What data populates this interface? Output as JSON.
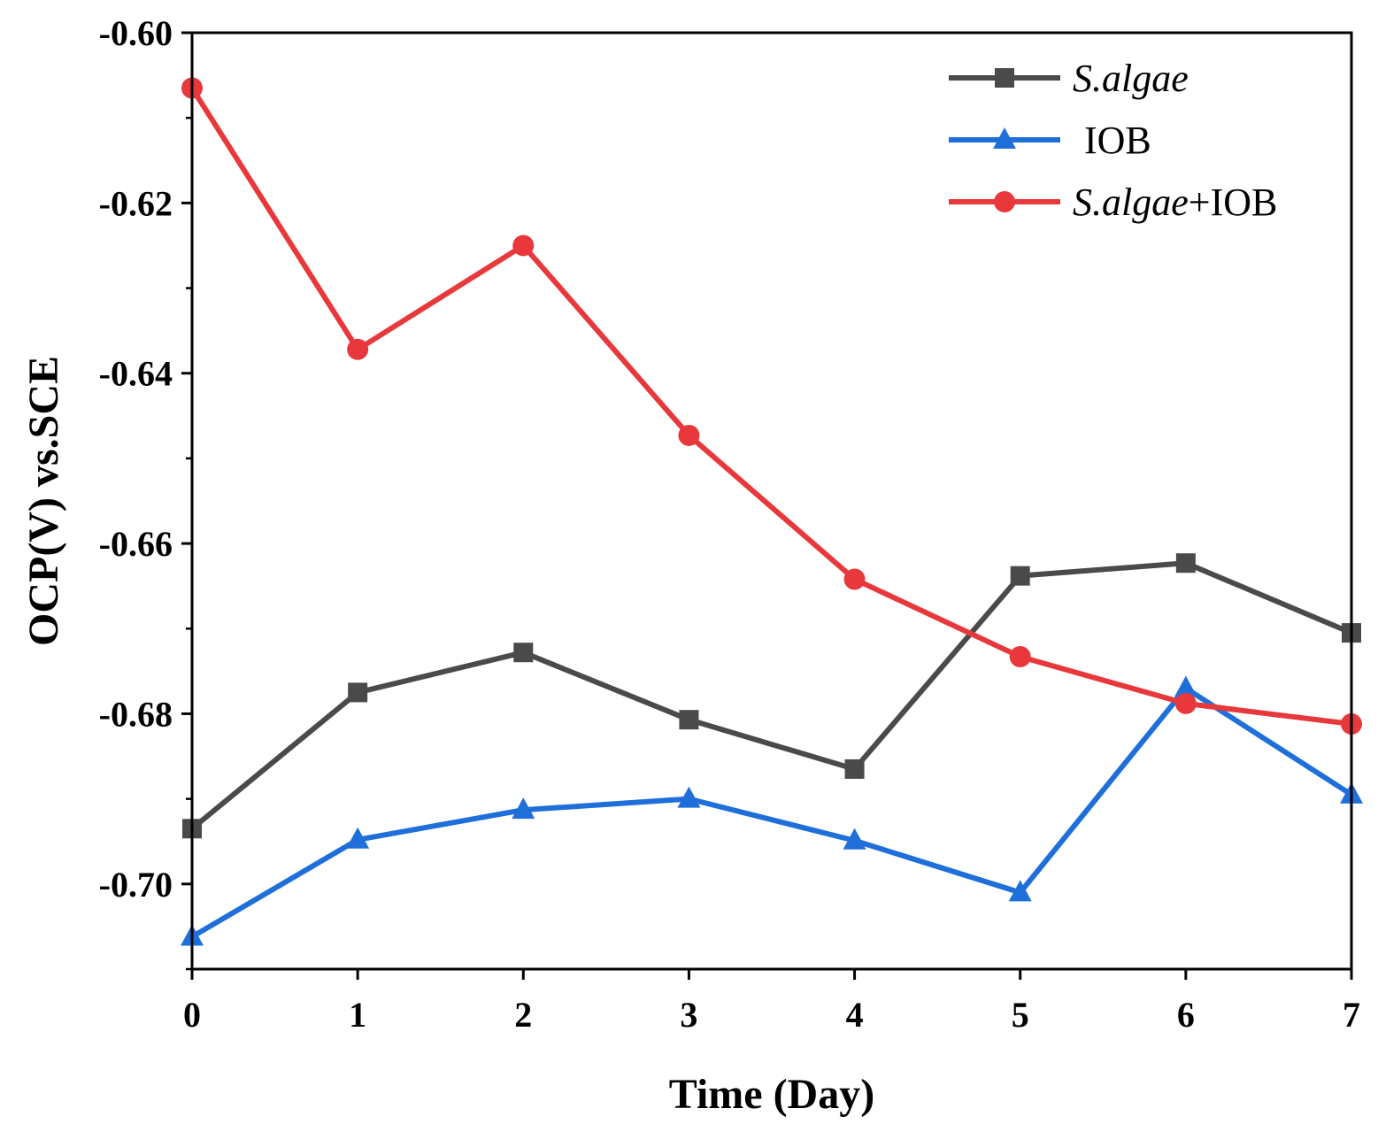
{
  "chart_data": {
    "type": "line",
    "title": "",
    "xlabel": "Time (Day)",
    "ylabel": "OCP(V) vs.SCE",
    "x": [
      0,
      1,
      2,
      3,
      4,
      5,
      6,
      7
    ],
    "xlim": [
      0,
      7
    ],
    "ylim": [
      -0.71,
      -0.6
    ],
    "xticks": [
      "0",
      "1",
      "2",
      "3",
      "4",
      "5",
      "6",
      "7"
    ],
    "yticks": [
      "-0.60",
      "-0.62",
      "-0.64",
      "-0.66",
      "-0.68",
      "-0.70"
    ],
    "ytick_values": [
      -0.6,
      -0.62,
      -0.64,
      -0.66,
      -0.68,
      -0.7
    ],
    "grid": false,
    "legend_position": "top-right",
    "series": [
      {
        "name": "S.algae",
        "name_italic": "S.algae",
        "name_suffix": "",
        "color": "#4a4a4a",
        "marker": "square",
        "values": [
          -0.6935,
          -0.6775,
          -0.6728,
          -0.6807,
          -0.6865,
          -0.6638,
          -0.6623,
          -0.6705
        ]
      },
      {
        "name": "IOB",
        "name_italic": "",
        "name_suffix": "IOB",
        "color": "#1f6fdb",
        "marker": "triangle",
        "values": [
          -0.7062,
          -0.6948,
          -0.6913,
          -0.69,
          -0.6949,
          -0.701,
          -0.677,
          -0.6895
        ]
      },
      {
        "name": "S.algae+IOB",
        "name_italic": "S.algae",
        "name_suffix": "+IOB",
        "color": "#e8383b",
        "marker": "circle",
        "values": [
          -0.6065,
          -0.6372,
          -0.625,
          -0.6473,
          -0.6642,
          -0.6733,
          -0.6788,
          -0.6812
        ]
      }
    ]
  }
}
